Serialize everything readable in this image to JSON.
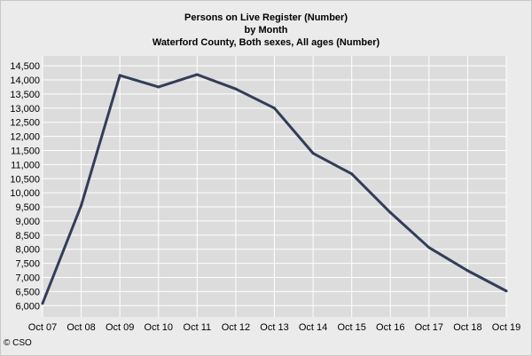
{
  "chart_data": {
    "type": "line",
    "title": "Persons on Live Register (Number)",
    "subtitle_lines": [
      "by Month",
      "Waterford County, Both sexes, All ages (Number)"
    ],
    "xlabel": "",
    "ylabel": "",
    "categories": [
      "Oct 07",
      "Oct 08",
      "Oct 09",
      "Oct 10",
      "Oct 11",
      "Oct 12",
      "Oct 13",
      "Oct 14",
      "Oct 15",
      "Oct 16",
      "Oct 17",
      "Oct 18",
      "Oct 19"
    ],
    "series": [
      {
        "name": "Persons on Live Register",
        "color": "#333d58",
        "values": [
          6080,
          9550,
          14160,
          13750,
          14190,
          13680,
          13000,
          11400,
          10670,
          9300,
          8060,
          7240,
          6520
        ]
      }
    ],
    "yticks": [
      6000,
      6500,
      7000,
      7500,
      8000,
      8500,
      9000,
      9500,
      10000,
      10500,
      11000,
      11500,
      12000,
      12500,
      13000,
      13500,
      14000,
      14500
    ],
    "ytick_labels": [
      "6,000",
      "6,500",
      "7,000",
      "7,500",
      "8,000",
      "8,500",
      "9,000",
      "9,500",
      "10,000",
      "10,500",
      "11,000",
      "11,500",
      "12,000",
      "12,500",
      "13,000",
      "13,500",
      "14,000",
      "14,500"
    ],
    "ylim": [
      5600,
      14850
    ],
    "grid": true,
    "legend": "none"
  },
  "footer": {
    "copyright": "© CSO"
  }
}
